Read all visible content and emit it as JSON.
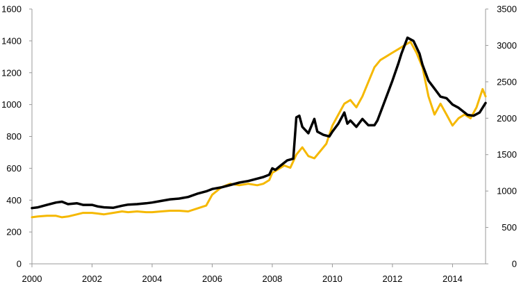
{
  "chart_data": {
    "type": "line",
    "title": "",
    "xlabel": "",
    "ylabel": "",
    "y2label": "",
    "grid": false,
    "legend": "none",
    "xlim": [
      2000,
      2015.1
    ],
    "ylim": [
      0,
      1600
    ],
    "y2lim": [
      0,
      3500
    ],
    "x_ticks": [
      2000,
      2002,
      2004,
      2006,
      2008,
      2010,
      2012,
      2014
    ],
    "x_tick_labels": [
      "2000",
      "2002",
      "2004",
      "2006",
      "2008",
      "2010",
      "2012",
      "2014"
    ],
    "y_ticks": [
      0,
      200,
      400,
      600,
      800,
      1000,
      1200,
      1400,
      1600
    ],
    "y_tick_labels": [
      "0",
      "200",
      "400",
      "600",
      "800",
      "1000",
      "1200",
      "1400",
      "1600"
    ],
    "y2_ticks": [
      0,
      500,
      1000,
      1500,
      2000,
      2500,
      3000,
      3500
    ],
    "y2_tick_labels": [
      "0",
      "500",
      "1000",
      "1500",
      "2000",
      "2500",
      "3000",
      "3500"
    ],
    "series": [
      {
        "axis": "left",
        "color": "#000000",
        "x": [
          2000.0,
          2000.2,
          2000.5,
          2000.8,
          2001.0,
          2001.2,
          2001.5,
          2001.7,
          2002.0,
          2002.2,
          2002.4,
          2002.7,
          2003.0,
          2003.2,
          2003.5,
          2003.8,
          2004.0,
          2004.3,
          2004.6,
          2004.9,
          2005.2,
          2005.5,
          2005.8,
          2006.0,
          2006.3,
          2006.6,
          2006.9,
          2007.2,
          2007.5,
          2007.7,
          2007.9,
          2008.0,
          2008.1,
          2008.3,
          2008.5,
          2008.7,
          2008.8,
          2008.9,
          2009.0,
          2009.2,
          2009.4,
          2009.5,
          2009.7,
          2009.9,
          2010.0,
          2010.2,
          2010.4,
          2010.5,
          2010.6,
          2010.8,
          2011.0,
          2011.2,
          2011.4,
          2011.5,
          2011.7,
          2011.9,
          2012.0,
          2012.2,
          2012.3,
          2012.5,
          2012.7,
          2012.9,
          2013.0,
          2013.2,
          2013.4,
          2013.6,
          2013.8,
          2014.0,
          2014.2,
          2014.5,
          2014.7,
          2014.9,
          2015.1
        ],
        "y": [
          350,
          355,
          370,
          385,
          390,
          375,
          380,
          370,
          370,
          360,
          355,
          352,
          365,
          372,
          375,
          380,
          385,
          395,
          405,
          410,
          420,
          440,
          455,
          470,
          480,
          495,
          510,
          520,
          535,
          545,
          560,
          600,
          590,
          620,
          650,
          660,
          920,
          930,
          860,
          820,
          910,
          830,
          810,
          800,
          830,
          880,
          950,
          880,
          900,
          860,
          910,
          870,
          870,
          900,
          1000,
          1100,
          1150,
          1260,
          1320,
          1420,
          1400,
          1320,
          1250,
          1150,
          1100,
          1050,
          1040,
          1000,
          980,
          935,
          930,
          950,
          1010
        ]
      },
      {
        "axis": "right",
        "color": "#f5b800",
        "x": [
          2000.0,
          2000.2,
          2000.5,
          2000.8,
          2001.0,
          2001.2,
          2001.5,
          2001.7,
          2002.0,
          2002.2,
          2002.4,
          2002.7,
          2003.0,
          2003.2,
          2003.5,
          2003.8,
          2004.0,
          2004.3,
          2004.6,
          2004.9,
          2005.2,
          2005.5,
          2005.8,
          2006.0,
          2006.3,
          2006.6,
          2006.9,
          2007.2,
          2007.5,
          2007.7,
          2007.9,
          2008.0,
          2008.2,
          2008.4,
          2008.6,
          2008.8,
          2009.0,
          2009.2,
          2009.4,
          2009.6,
          2009.8,
          2010.0,
          2010.2,
          2010.4,
          2010.6,
          2010.8,
          2011.0,
          2011.2,
          2011.4,
          2011.6,
          2011.8,
          2012.0,
          2012.2,
          2012.4,
          2012.6,
          2012.8,
          2013.0,
          2013.2,
          2013.4,
          2013.6,
          2013.8,
          2014.0,
          2014.2,
          2014.4,
          2014.6,
          2014.8,
          2015.0,
          2015.1
        ],
        "y": [
          640,
          650,
          660,
          660,
          640,
          650,
          680,
          700,
          700,
          690,
          680,
          700,
          720,
          710,
          720,
          710,
          710,
          720,
          730,
          730,
          720,
          760,
          800,
          950,
          1050,
          1100,
          1080,
          1100,
          1080,
          1100,
          1150,
          1250,
          1300,
          1350,
          1320,
          1500,
          1600,
          1480,
          1450,
          1550,
          1650,
          1900,
          2050,
          2200,
          2250,
          2150,
          2300,
          2500,
          2700,
          2800,
          2850,
          2900,
          2950,
          3000,
          3050,
          2900,
          2700,
          2300,
          2050,
          2200,
          2050,
          1900,
          2000,
          2050,
          2000,
          2150,
          2400,
          2300
        ]
      }
    ]
  }
}
